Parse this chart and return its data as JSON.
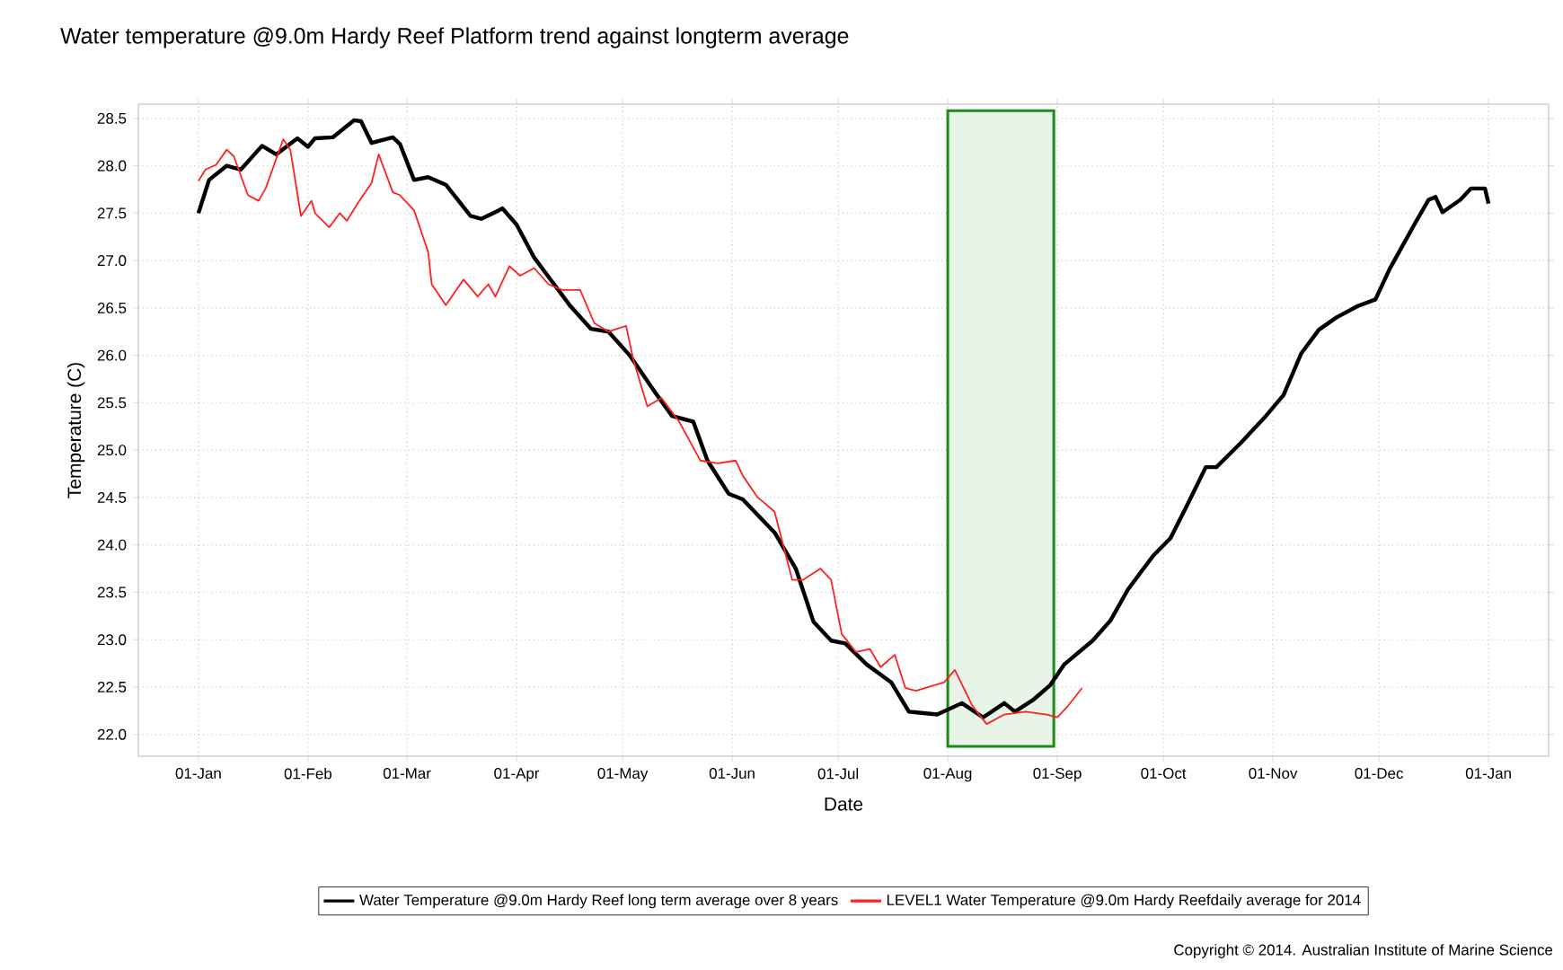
{
  "chart_data": {
    "type": "line",
    "title": "Water temperature @9.0m Hardy Reef Platform trend against longterm average",
    "xlabel": "Date",
    "ylabel": "Temperature (C)",
    "annotations": [
      "Copyright © 2014. Australian Institute of Marine Science"
    ],
    "xlim": [
      "2013-12-15",
      "2015-01-18"
    ],
    "ylim": [
      21.77,
      28.65
    ],
    "xticks": [
      {
        "value": "2014-01-01",
        "label": "01-Jan"
      },
      {
        "value": "2014-02-01",
        "label": "01-Feb"
      },
      {
        "value": "2014-03-01",
        "label": "01-Mar"
      },
      {
        "value": "2014-04-01",
        "label": "01-Apr"
      },
      {
        "value": "2014-05-01",
        "label": "01-May"
      },
      {
        "value": "2014-06-01",
        "label": "01-Jun"
      },
      {
        "value": "2014-07-01",
        "label": "01-Jul"
      },
      {
        "value": "2014-08-01",
        "label": "01-Aug"
      },
      {
        "value": "2014-09-01",
        "label": "01-Sep"
      },
      {
        "value": "2014-10-01",
        "label": "01-Oct"
      },
      {
        "value": "2014-11-01",
        "label": "01-Nov"
      },
      {
        "value": "2014-12-01",
        "label": "01-Dec"
      },
      {
        "value": "2015-01-01",
        "label": "01-Jan"
      }
    ],
    "yticks": [
      {
        "value": 22,
        "label": "22.0"
      },
      {
        "value": 22.5,
        "label": "22.5"
      },
      {
        "value": 23,
        "label": "23.0"
      },
      {
        "value": 23.5,
        "label": "23.5"
      },
      {
        "value": 24,
        "label": "24.0"
      },
      {
        "value": 24.5,
        "label": "24.5"
      },
      {
        "value": 25,
        "label": "25.0"
      },
      {
        "value": 25.5,
        "label": "25.5"
      },
      {
        "value": 26,
        "label": "26.0"
      },
      {
        "value": 26.5,
        "label": "26.5"
      },
      {
        "value": 27,
        "label": "27.0"
      },
      {
        "value": 27.5,
        "label": "27.5"
      },
      {
        "value": 28,
        "label": "28.0"
      },
      {
        "value": 28.5,
        "label": "28.5"
      }
    ],
    "grid": true,
    "legend": "bottom",
    "marker": "none",
    "line_style": "solid",
    "bands": [
      {
        "axis": "x",
        "from": "2014-08-01",
        "to": "2014-08-31",
        "color": "#1a8c1a"
      }
    ],
    "series": [
      {
        "name": "Water Temperature @9.0m Hardy Reef long term average over 8 years",
        "color": "#000000",
        "x": [
          "2014-01-01",
          "2014-01-04",
          "2014-01-09",
          "2014-01-13",
          "2014-01-19",
          "2014-01-23",
          "2014-01-29",
          "2014-02-01",
          "2014-02-03",
          "2014-02-08",
          "2014-02-14",
          "2014-02-16",
          "2014-02-19",
          "2014-02-25",
          "2014-02-27",
          "2014-03-03",
          "2014-03-07",
          "2014-03-12",
          "2014-03-19",
          "2014-03-22",
          "2014-03-27",
          "2014-03-28",
          "2014-04-01",
          "2014-04-06",
          "2014-04-11",
          "2014-04-16",
          "2014-04-22",
          "2014-04-27",
          "2014-05-03",
          "2014-05-10",
          "2014-05-15",
          "2014-05-21",
          "2014-05-25",
          "2014-05-31",
          "2014-06-04",
          "2014-06-13",
          "2014-06-19",
          "2014-06-24",
          "2014-06-29",
          "2014-07-03",
          "2014-07-09",
          "2014-07-16",
          "2014-07-21",
          "2014-07-29",
          "2014-08-05",
          "2014-08-11",
          "2014-08-17",
          "2014-08-20",
          "2014-08-25",
          "2014-08-30",
          "2014-09-03",
          "2014-09-11",
          "2014-09-16",
          "2014-09-21",
          "2014-09-28",
          "2014-10-03",
          "2014-10-08",
          "2014-10-13",
          "2014-10-16",
          "2014-10-23",
          "2014-10-30",
          "2014-11-04",
          "2014-11-09",
          "2014-11-14",
          "2014-11-19",
          "2014-11-25",
          "2014-11-30",
          "2014-12-04",
          "2014-12-11",
          "2014-12-15",
          "2014-12-17",
          "2014-12-19",
          "2014-12-24",
          "2014-12-27",
          "2014-12-31",
          "2015-01-01"
        ],
        "values": [
          27.5,
          27.85,
          28.0,
          27.96,
          28.21,
          28.12,
          28.29,
          28.2,
          28.29,
          28.3,
          28.48,
          28.47,
          28.24,
          28.3,
          28.23,
          27.85,
          27.88,
          27.8,
          27.47,
          27.44,
          27.53,
          27.55,
          27.38,
          27.03,
          26.78,
          26.53,
          26.28,
          26.25,
          26.0,
          25.62,
          25.36,
          25.3,
          24.89,
          24.54,
          24.48,
          24.13,
          23.75,
          23.19,
          22.99,
          22.96,
          22.74,
          22.55,
          22.24,
          22.21,
          22.33,
          22.18,
          22.33,
          22.24,
          22.36,
          22.52,
          22.74,
          22.99,
          23.2,
          23.53,
          23.88,
          24.07,
          24.44,
          24.82,
          24.82,
          25.08,
          25.36,
          25.58,
          26.02,
          26.27,
          26.4,
          26.52,
          26.59,
          26.91,
          27.38,
          27.64,
          27.67,
          27.51,
          27.64,
          27.76,
          27.76,
          27.6
        ]
      },
      {
        "name": "LEVEL1 Water Temperature @9.0m Hardy Reefdaily average for 2014",
        "color": "#ff2020",
        "x": [
          "2014-01-01",
          "2014-01-03",
          "2014-01-06",
          "2014-01-09",
          "2014-01-11",
          "2014-01-15",
          "2014-01-18",
          "2014-01-20",
          "2014-01-25",
          "2014-01-27",
          "2014-01-30",
          "2014-02-02",
          "2014-02-03",
          "2014-02-07",
          "2014-02-10",
          "2014-02-12",
          "2014-02-15",
          "2014-02-19",
          "2014-02-21",
          "2014-02-25",
          "2014-02-27",
          "2014-03-03",
          "2014-03-07",
          "2014-03-08",
          "2014-03-12",
          "2014-03-17",
          "2014-03-21",
          "2014-03-24",
          "2014-03-26",
          "2014-03-30",
          "2014-04-02",
          "2014-04-06",
          "2014-04-10",
          "2014-04-14",
          "2014-04-19",
          "2014-04-23",
          "2014-04-27",
          "2014-05-02",
          "2014-05-04",
          "2014-05-08",
          "2014-05-12",
          "2014-05-17",
          "2014-05-23",
          "2014-05-28",
          "2014-06-02",
          "2014-06-04",
          "2014-06-08",
          "2014-06-13",
          "2014-06-18",
          "2014-06-21",
          "2014-06-26",
          "2014-06-29",
          "2014-07-02",
          "2014-07-06",
          "2014-07-10",
          "2014-07-13",
          "2014-07-17",
          "2014-07-20",
          "2014-07-23",
          "2014-07-31",
          "2014-08-03",
          "2014-08-08",
          "2014-08-12",
          "2014-08-17",
          "2014-08-23",
          "2014-08-29",
          "2014-09-01",
          "2014-09-04",
          "2014-09-08"
        ],
        "values": [
          27.84,
          27.96,
          28.01,
          28.17,
          28.1,
          27.69,
          27.63,
          27.76,
          28.28,
          28.17,
          27.47,
          27.63,
          27.5,
          27.35,
          27.5,
          27.42,
          27.6,
          27.82,
          28.12,
          27.72,
          27.69,
          27.53,
          27.09,
          26.75,
          26.53,
          26.8,
          26.62,
          26.75,
          26.62,
          26.94,
          26.84,
          26.92,
          26.75,
          26.69,
          26.69,
          26.34,
          26.25,
          26.31,
          25.96,
          25.46,
          25.55,
          25.3,
          24.89,
          24.86,
          24.89,
          24.73,
          24.51,
          24.35,
          23.63,
          23.63,
          23.75,
          23.63,
          23.06,
          22.87,
          22.9,
          22.71,
          22.84,
          22.49,
          22.46,
          22.55,
          22.68,
          22.3,
          22.11,
          22.21,
          22.24,
          22.21,
          22.18,
          22.3,
          22.49
        ]
      }
    ]
  }
}
